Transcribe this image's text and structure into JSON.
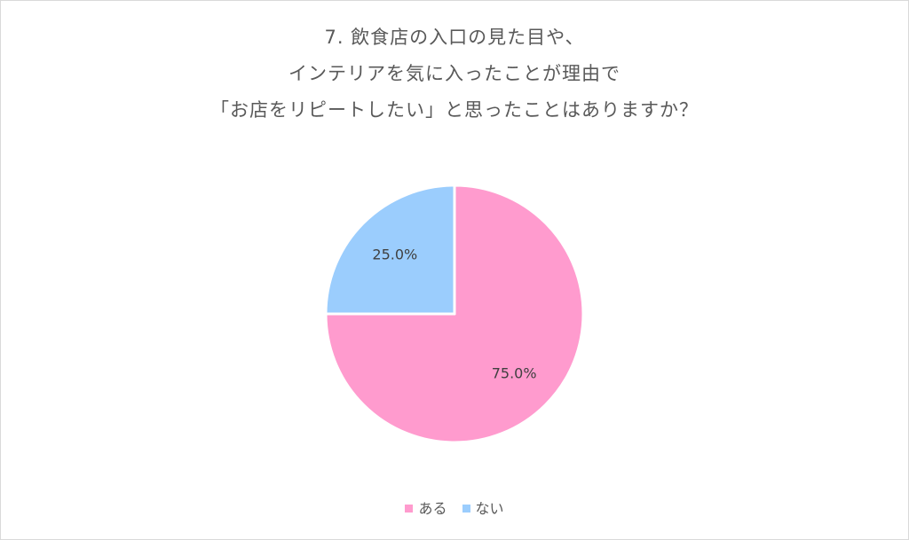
{
  "title_lines": [
    "7. 飲食店の入口の見た目や、",
    "インテリアを気に入ったことが理由で",
    "「お店をリピートしたい」と思ったことはありますか？"
  ],
  "chart_data": {
    "type": "pie",
    "title": "7. 飲食店の入口の見た目や、インテリアを気に入ったことが理由で「お店をリピートしたい」と思ったことはありますか？",
    "categories": [
      "ある",
      "ない"
    ],
    "values": [
      75.0,
      25.0
    ],
    "data_labels": [
      "75.0%",
      "25.0%"
    ],
    "colors": [
      "#ff9bce",
      "#9bcdfd"
    ],
    "start_angle_deg": 0,
    "direction": "clockwise",
    "legend_position": "bottom"
  }
}
